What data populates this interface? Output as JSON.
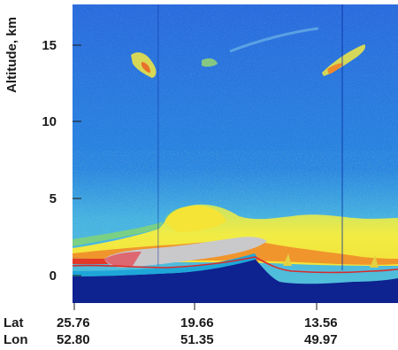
{
  "figure": {
    "y_axis_label": "Altitude, km",
    "y_ticks": [
      "15",
      "10",
      "5",
      "0"
    ],
    "lat_label": "Lat",
    "lon_label": "Lon",
    "lat_values": [
      "25.76",
      "19.66",
      "13.56"
    ],
    "lon_values": [
      "52.80",
      "51.35",
      "49.97"
    ]
  },
  "chart_data": {
    "type": "heatmap",
    "title": "",
    "ylabel": "Altitude, km",
    "y_ticks": [
      15,
      10,
      5,
      0
    ],
    "ylim": [
      -2,
      18
    ],
    "x_ticks": [
      {
        "lat": 25.76,
        "lon": 52.8
      },
      {
        "lat": 19.66,
        "lon": 51.35
      },
      {
        "lat": 13.56,
        "lon": 49.97
      }
    ],
    "colors": {
      "background": "#1f63d8",
      "surface": "#0d1f8f",
      "low": "#1cb4dc",
      "mid": "#8fdc63",
      "high": "#f4ec3a",
      "peak": "#f08a2a",
      "strong": "#e23b2a",
      "saturated": "#c8c8c8",
      "ground_line": "#d82a2a"
    }
  }
}
